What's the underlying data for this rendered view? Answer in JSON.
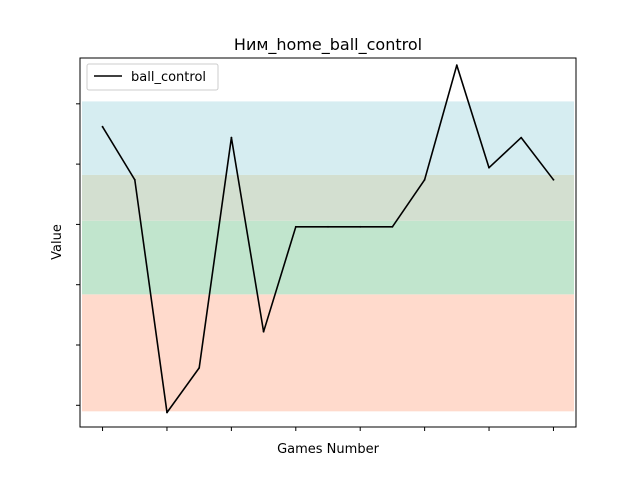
{
  "chart_data": {
    "type": "line",
    "title": "Ним_home_ball_control",
    "xlabel": "Games Number",
    "ylabel": "Value",
    "x": [
      1,
      2,
      3,
      4,
      5,
      6,
      7,
      8,
      9,
      10,
      11,
      12,
      13,
      14,
      15
    ],
    "series": [
      {
        "name": "ball_control",
        "values": [
          83.1,
          78.7,
          59.4,
          63.1,
          82.2,
          66.1,
          74.8,
          74.8,
          74.8,
          74.8,
          78.7,
          88.2,
          79.7,
          82.2,
          78.7
        ]
      }
    ],
    "xlim": [
      0.3,
      15.7
    ],
    "ylim": [
      58.2,
      88.8
    ],
    "bands": [
      {
        "from": 59.5,
        "to": 69.2,
        "color": "#ffdacc"
      },
      {
        "from": 69.2,
        "to": 75.3,
        "color": "#c1e5cd"
      },
      {
        "from": 75.3,
        "to": 79.1,
        "color": "#d3dfd0"
      },
      {
        "from": 79.1,
        "to": 85.2,
        "color": "#d6edf1"
      }
    ],
    "line_color": "#000000",
    "grid": false,
    "legend": "top-left",
    "x_tick_labels_shown": false,
    "y_tick_labels_shown": false
  }
}
